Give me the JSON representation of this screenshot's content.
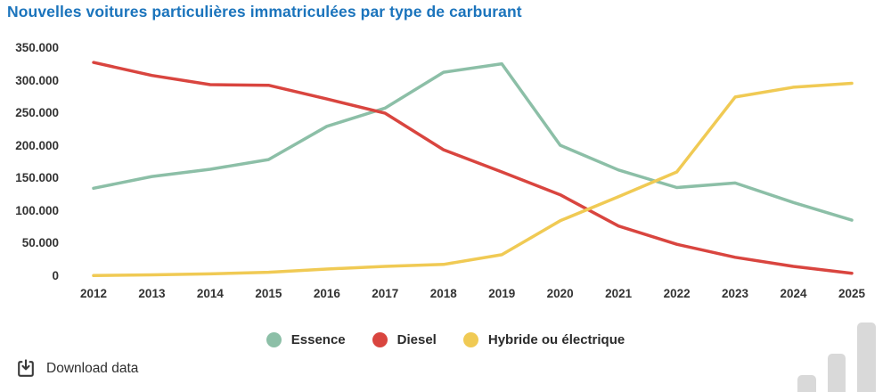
{
  "title": "Nouvelles voitures particulières immatriculées par type de carburant",
  "colors": {
    "title": "#1b74bc",
    "axis_text": "#333333",
    "essence": "#8cbfa7",
    "diesel": "#d9453f",
    "hybride": "#f0ca54",
    "watermark_bars": "#d9d9d9"
  },
  "chart_data": {
    "type": "line",
    "title": "Nouvelles voitures particulières immatriculées par type de carburant",
    "categories": [
      "2012",
      "2013",
      "2014",
      "2015",
      "2016",
      "2017",
      "2018",
      "2019",
      "2020",
      "2021",
      "2022",
      "2023",
      "2024",
      "2025"
    ],
    "series": [
      {
        "name": "Essence",
        "color": "#8cbfa7",
        "values": [
          135000,
          153000,
          164000,
          179000,
          230000,
          258000,
          313000,
          326000,
          201000,
          163000,
          136000,
          143000,
          113000,
          86000
        ]
      },
      {
        "name": "Diesel",
        "color": "#d9453f",
        "values": [
          328000,
          308000,
          294000,
          293000,
          272000,
          250000,
          194000,
          160000,
          125000,
          77000,
          49000,
          29000,
          15000,
          4500
        ]
      },
      {
        "name": "Hybride ou électrique",
        "color": "#f0ca54",
        "values": [
          1000,
          2000,
          3500,
          6000,
          11000,
          15000,
          18000,
          33000,
          85000,
          122000,
          160000,
          275000,
          290000,
          296000
        ]
      }
    ],
    "xlabel": "",
    "ylabel": "",
    "ylim": [
      0,
      350000
    ],
    "ytick_labels": [
      "350.000",
      "300.000",
      "250.000",
      "200.000",
      "150.000",
      "100.000",
      "50.000",
      "0"
    ],
    "grid": false,
    "legend_position": "bottom-center"
  },
  "footer": {
    "download_label": "Download data"
  },
  "icons": {
    "download": "download-tray-icon",
    "watermark": "bar-chart-icon"
  }
}
